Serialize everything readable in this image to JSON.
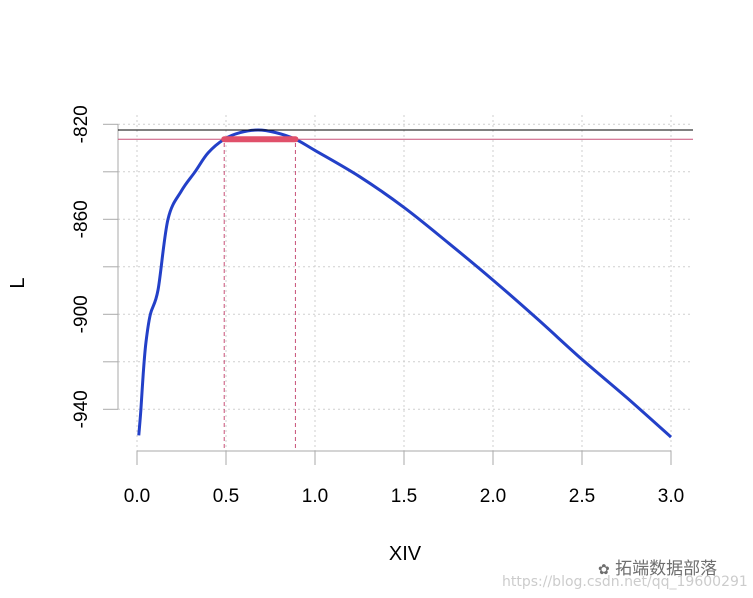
{
  "chart_data": {
    "type": "line",
    "title": "",
    "xlabel": "XIV",
    "ylabel": "L",
    "xlim": [
      0,
      3
    ],
    "ylim": [
      -940,
      -820
    ],
    "x_ticks": [
      "0.0",
      "0.5",
      "1.0",
      "1.5",
      "2.0",
      "2.5",
      "3.0"
    ],
    "x_tick_values": [
      0,
      0.5,
      1,
      1.5,
      2,
      2.5,
      3
    ],
    "y_ticks": [
      "-820",
      "-860",
      "-900",
      "-940"
    ],
    "y_tick_values": [
      -820,
      -860,
      -900,
      -940
    ],
    "y_minor_ticks": [
      -840,
      -880,
      -920
    ],
    "grid": true,
    "curve_color": "#2340c8",
    "highlight_color": "#e0506a",
    "series": [
      {
        "x": [
          0.01,
          0.022,
          0.035,
          0.05,
          0.075,
          0.118,
          0.174,
          0.25,
          0.326,
          0.4,
          0.49,
          0.58,
          0.68,
          0.78,
          0.89,
          1.0,
          1.25,
          1.5,
          1.75,
          2.0,
          2.25,
          2.5,
          2.75,
          3.0
        ],
        "y": [
          -951,
          -940,
          -925,
          -912,
          -900,
          -889.8,
          -860,
          -848,
          -840,
          -832,
          -826.3,
          -823.5,
          -822.4,
          -823.5,
          -826.3,
          -831,
          -842,
          -855,
          -870,
          -885.6,
          -902,
          -919,
          -935,
          -951.7
        ]
      }
    ],
    "max_line_y": -822.4,
    "ci_line_y": -826.3,
    "ci_bounds_x": [
      0.49,
      0.89
    ]
  },
  "watermark": {
    "brand": "拓端数据部落",
    "url": "https://blog.csdn.net/qq_19600291"
  }
}
